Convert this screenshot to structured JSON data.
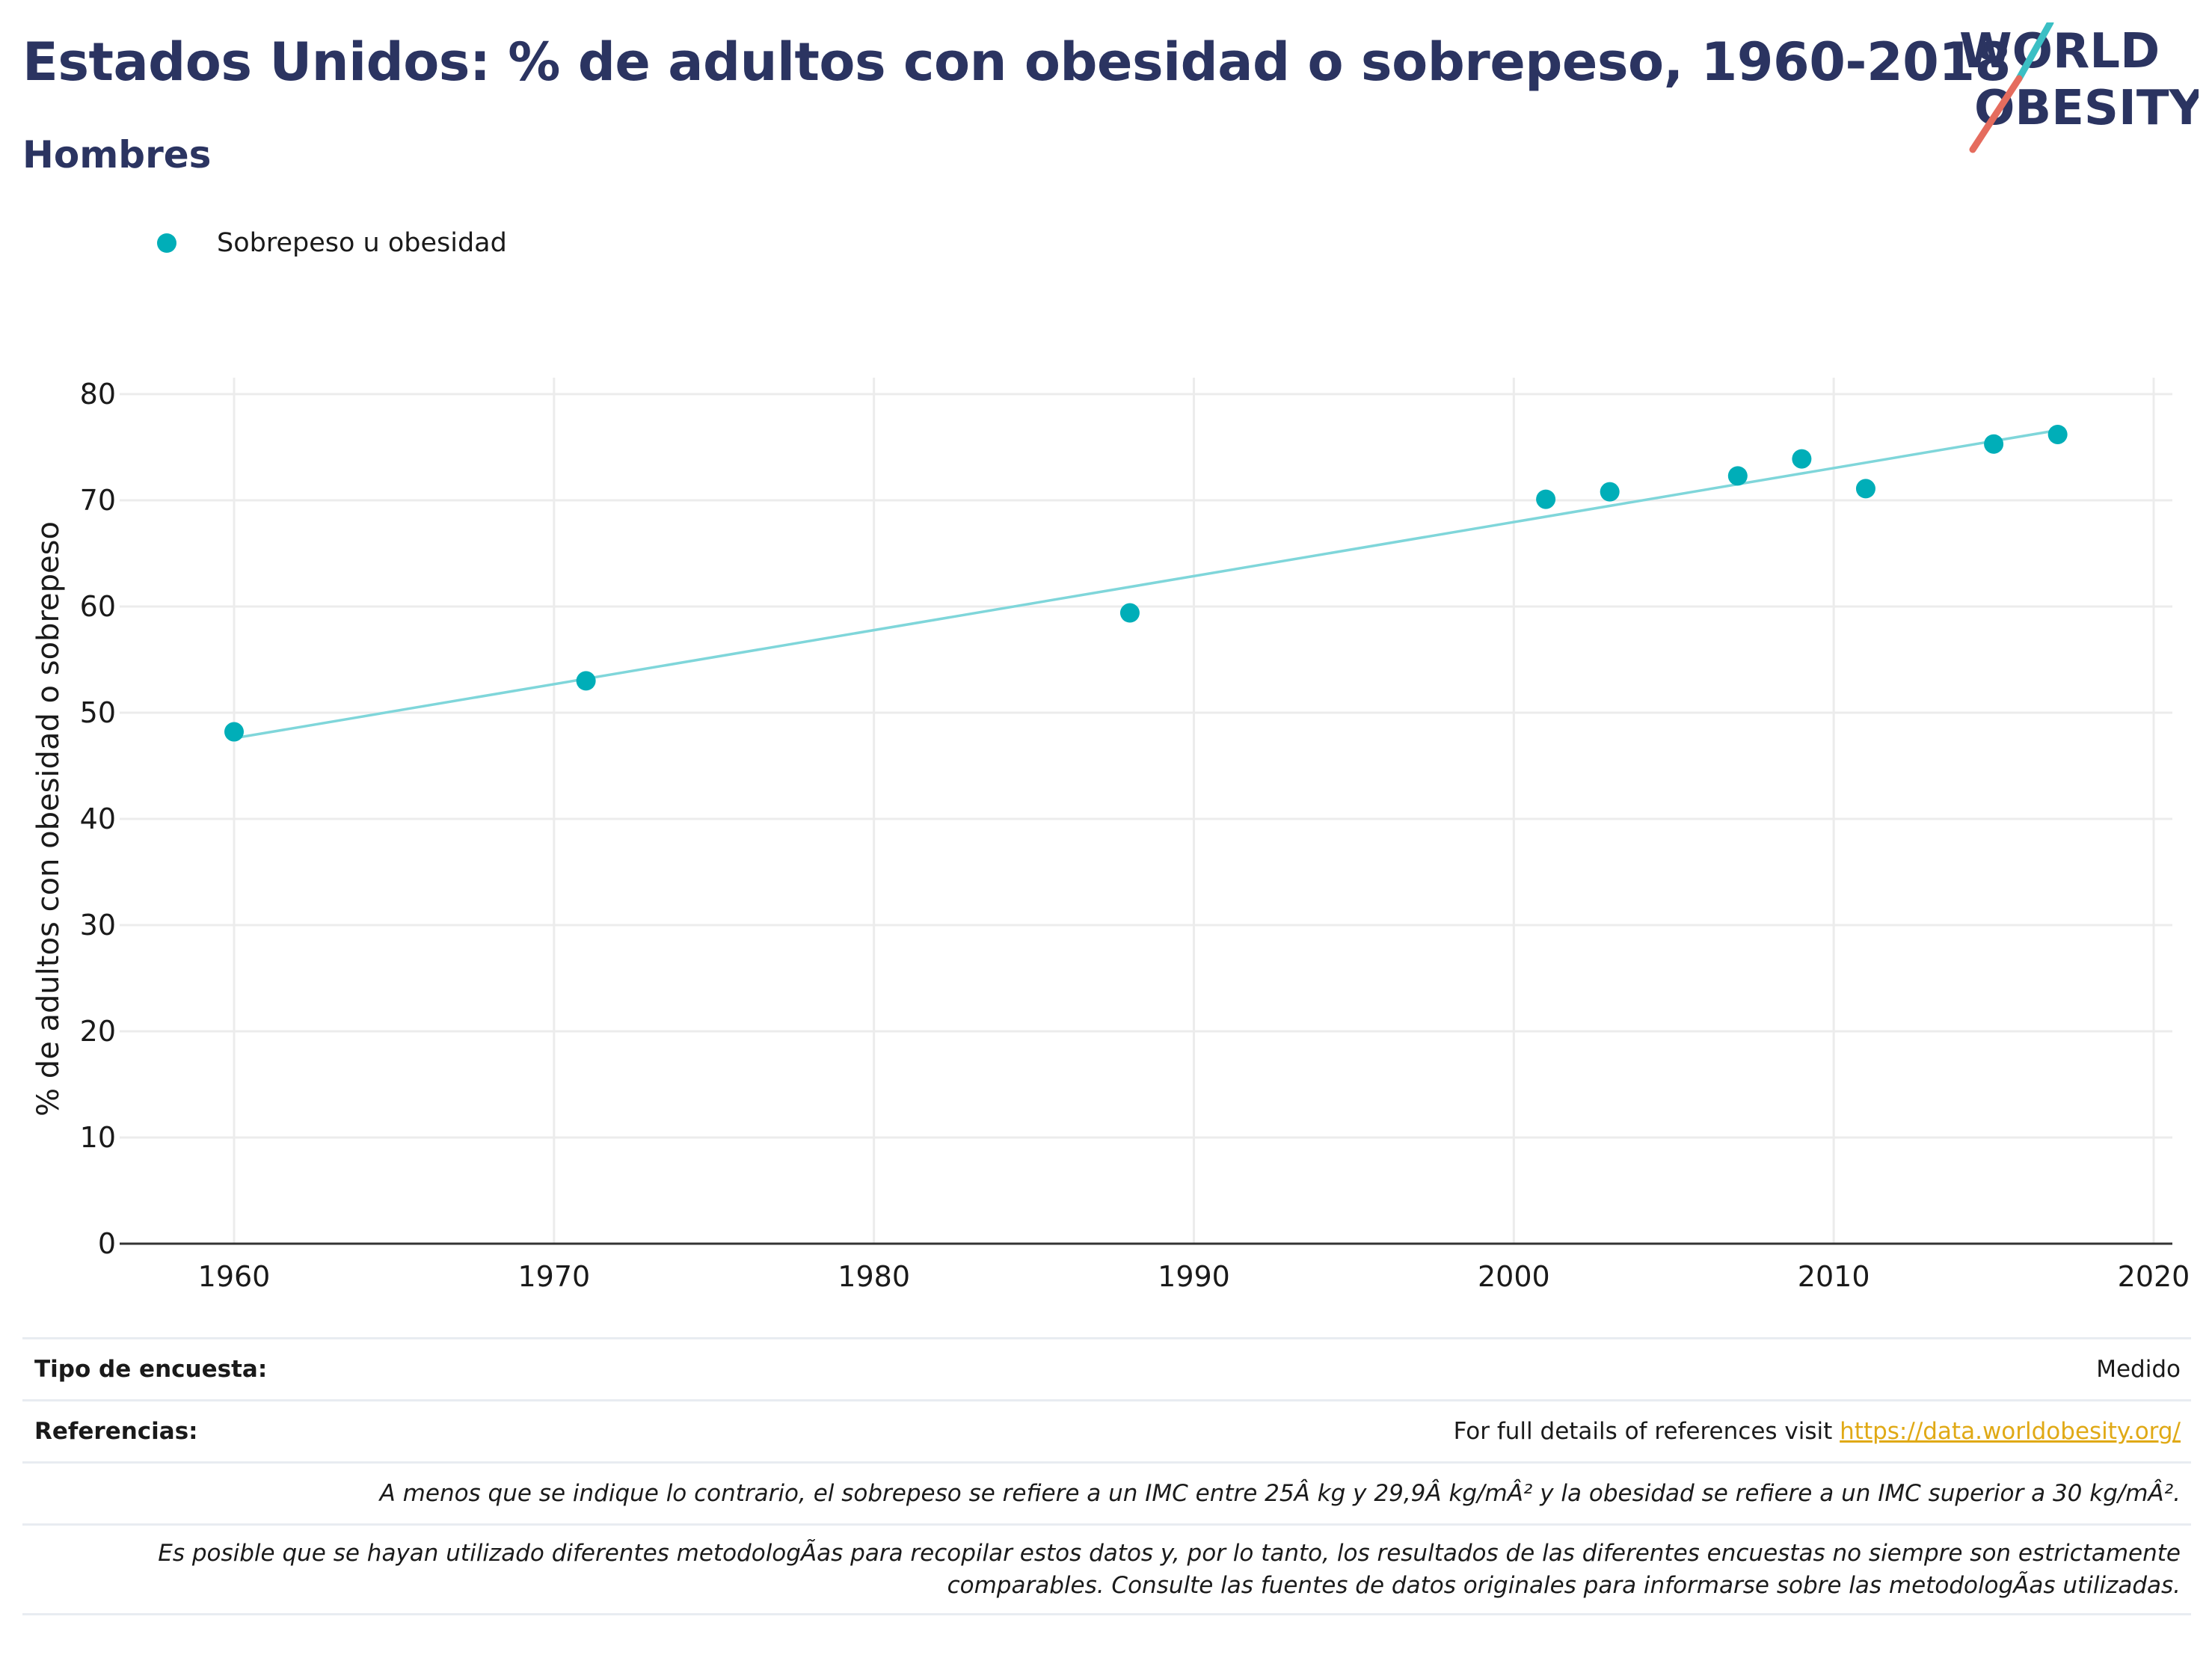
{
  "header": {
    "title": "Estados Unidos: % de adultos con obesidad o sobrepeso, 1960-2018",
    "subtitle": "Hombres",
    "logo_line1": "WORLD",
    "logo_line2": "OBESITY"
  },
  "legend": {
    "label": "Sobrepeso u obesidad"
  },
  "colors": {
    "title": "#2b3461",
    "points": "#00aeb8",
    "trendline": "#7fd6da",
    "grid": "#ececec",
    "axis": "#333333",
    "link": "#e0a915",
    "logo_teal": "#3bbfc4",
    "logo_coral": "#e56c5e"
  },
  "chart_data": {
    "type": "scatter",
    "ylabel": "% de adultos con obesidad o sobrepeso",
    "xlabel": "",
    "xlim": [
      1959,
      2020.6
    ],
    "ylim": [
      0,
      80
    ],
    "x_ticks": [
      1960,
      1970,
      1980,
      1990,
      2000,
      2010,
      2020
    ],
    "y_ticks": [
      0,
      10,
      20,
      30,
      40,
      50,
      60,
      70,
      80
    ],
    "grid": true,
    "legend_position": "top-left",
    "series": [
      {
        "name": "Sobrepeso u obesidad",
        "x": [
          1960,
          1971,
          1988,
          2001,
          2003,
          2007,
          2009,
          2011,
          2015,
          2017
        ],
        "y": [
          48.2,
          53.0,
          59.4,
          70.1,
          70.8,
          72.3,
          73.9,
          71.1,
          75.3,
          76.2
        ]
      }
    ],
    "trendline": {
      "x": [
        1960,
        2017
      ],
      "y": [
        47.6,
        76.6
      ]
    }
  },
  "info": {
    "survey_type_label": "Tipo de encuesta:",
    "survey_type_value": "Medido",
    "references_label": "Referencias:",
    "references_text": "For full details of references visit ",
    "references_link": "https://data.worldobesity.org/",
    "note1": "A menos que se indique lo contrario, el sobrepeso se refiere a un IMC entre 25Â kg y 29,9Â kg/mÂ² y la obesidad se refiere a un IMC superior a 30 kg/mÂ².",
    "note2_line1": "Es posible que se hayan utilizado diferentes metodologÃ­as para recopilar estos datos y, por lo tanto, los resultados de las diferentes encuestas no siempre son estrictamente",
    "note2_line2": "comparables. Consulte las fuentes de datos originales para informarse sobre las metodologÃ­as utilizadas."
  }
}
